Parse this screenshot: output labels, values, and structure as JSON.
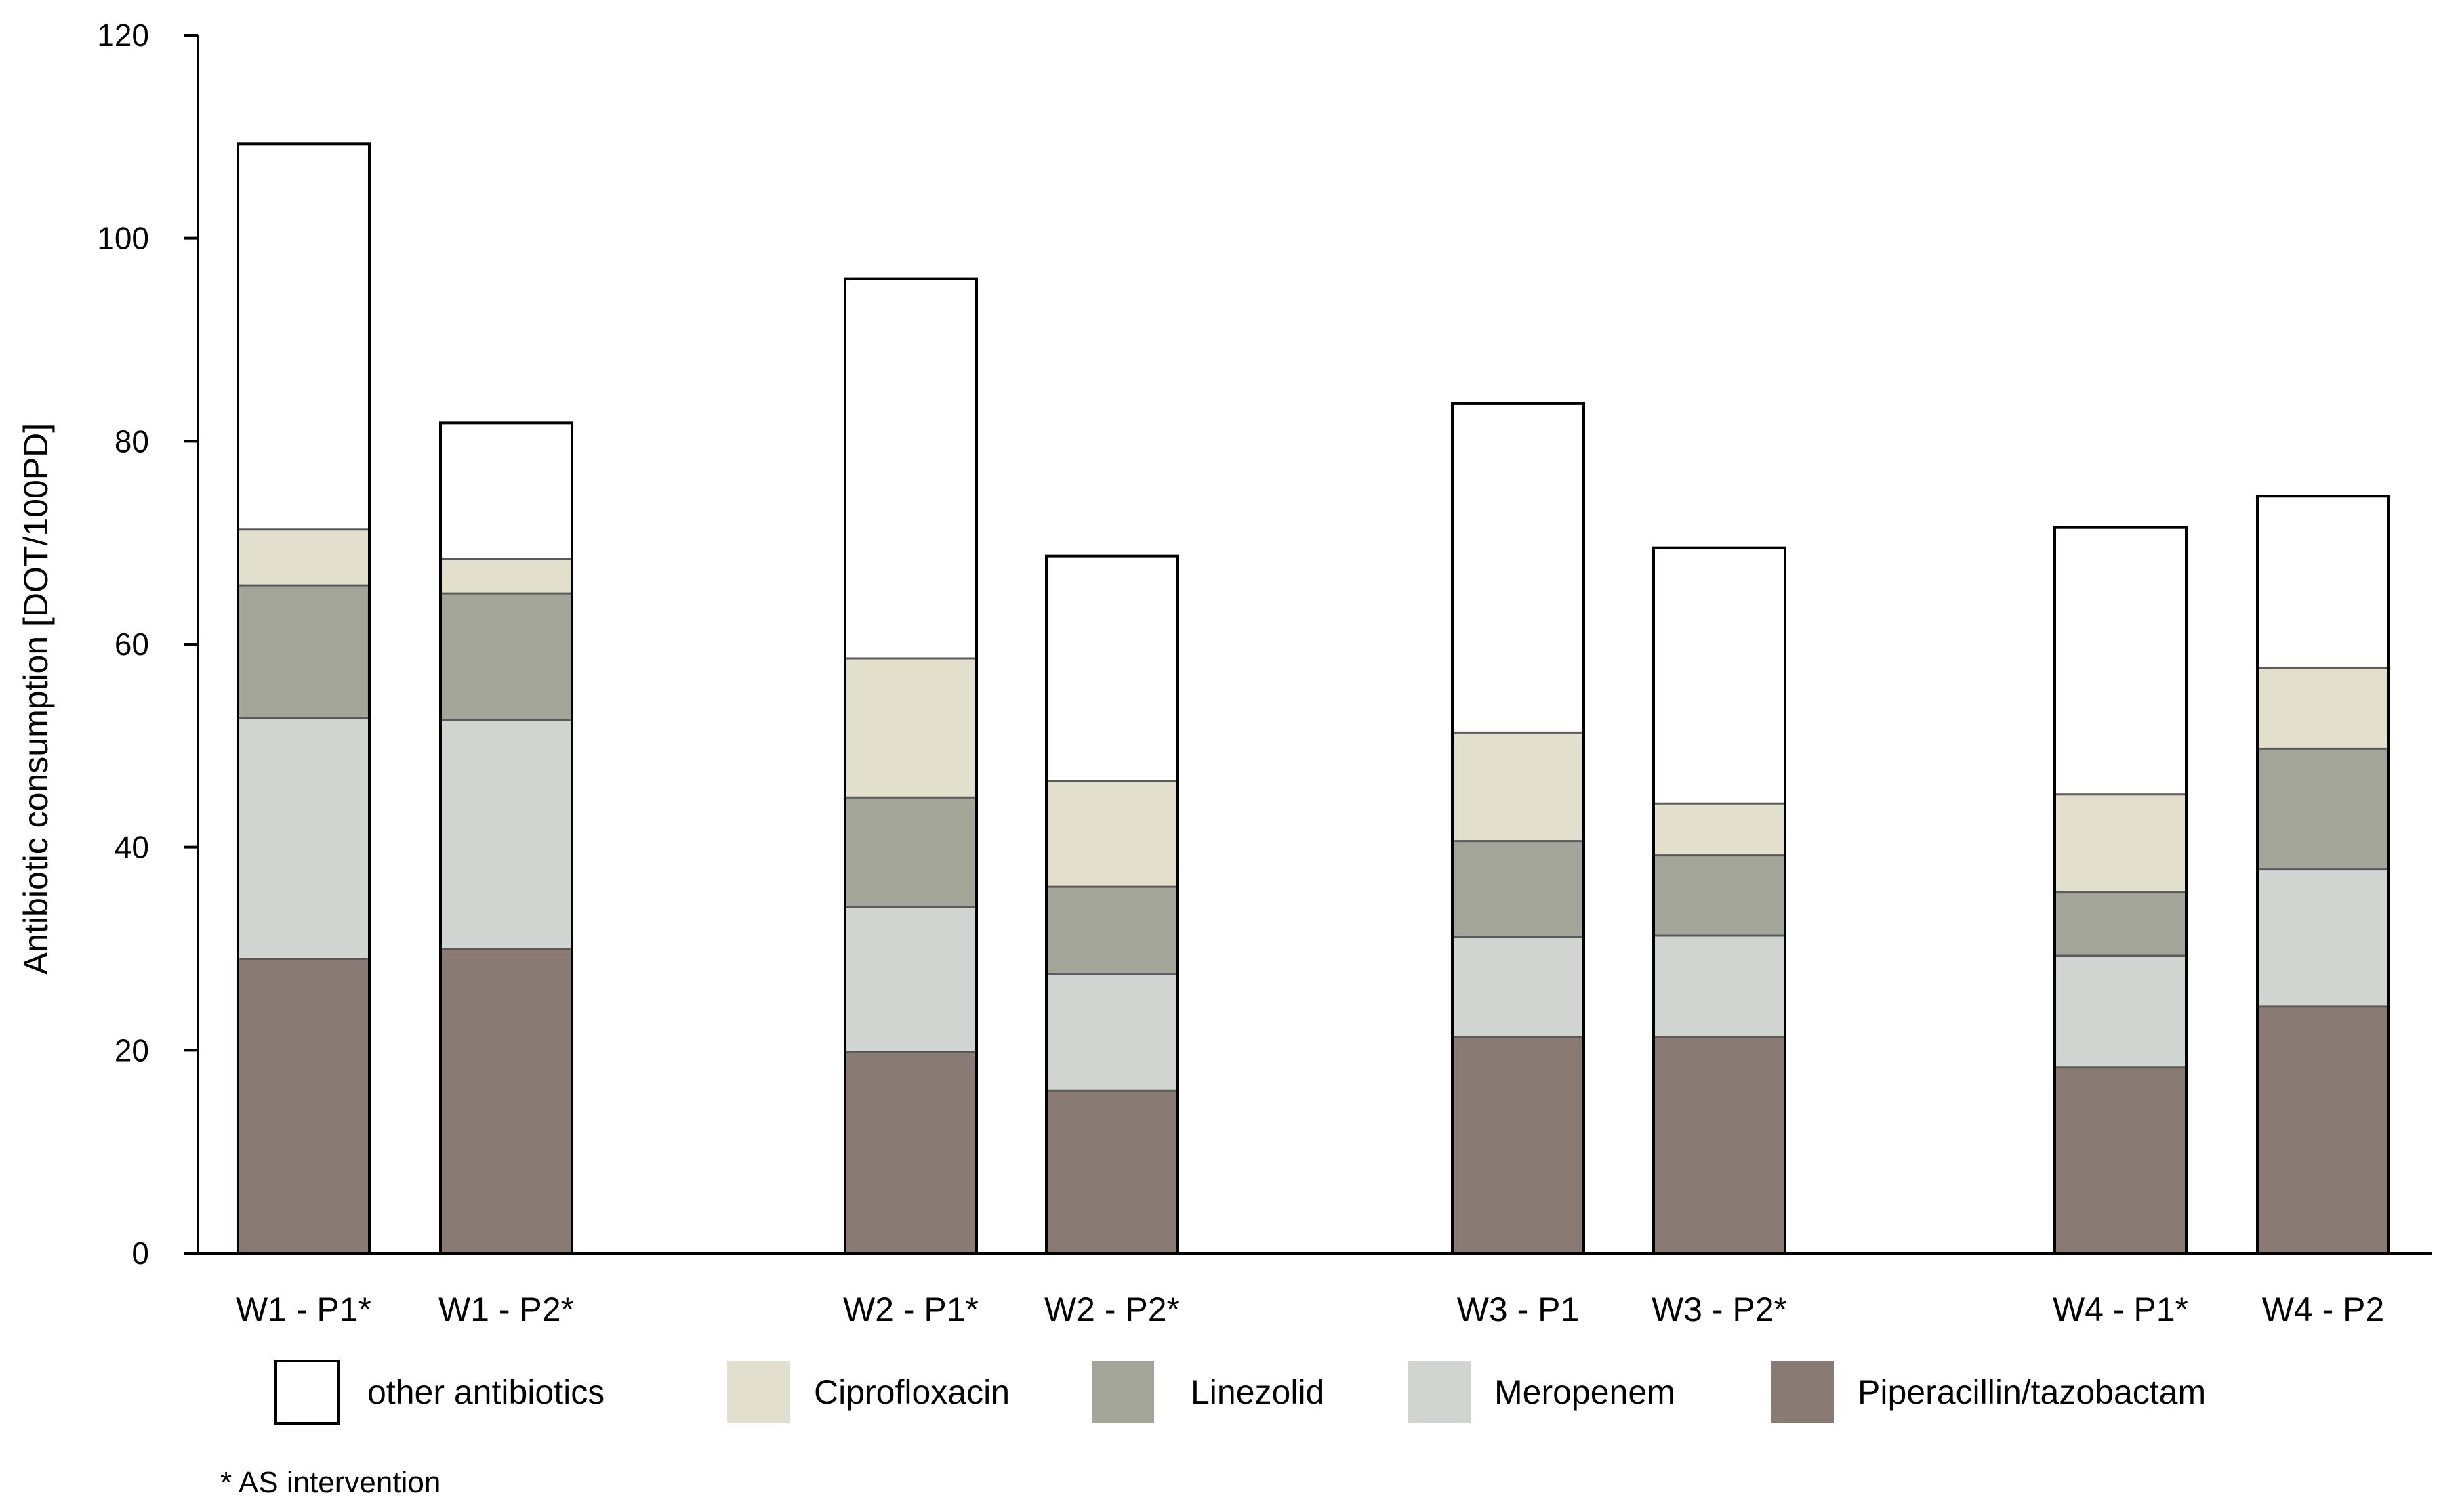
{
  "chart_data": {
    "type": "bar",
    "stacked": true,
    "title": "",
    "xlabel": "",
    "ylabel": "Antibiotic consumption [DOT/100PD]",
    "ylim": [
      0,
      120
    ],
    "yticks": [
      "0",
      "20",
      "40",
      "60",
      "80",
      "100",
      "120"
    ],
    "grid": false,
    "legend_position": "bottom",
    "categories": [
      "W1 - P1*",
      "W1 - P2*",
      "W2 - P1*",
      "W2 - P2*",
      "W3 - P1",
      "W3 - P2*",
      "W4 - P1*",
      "W4 - P2"
    ],
    "groups": [
      [
        "W1 - P1*",
        "W1 - P2*"
      ],
      [
        "W2 - P1*",
        "W2 - P2*"
      ],
      [
        "W3 - P1",
        "W3 - P2*"
      ],
      [
        "W4 - P1*",
        "W4 - P2"
      ]
    ],
    "series": [
      {
        "name": "Piperacillin/tazobactam",
        "color": "#8a7a74",
        "values": [
          29.0,
          30.0,
          19.8,
          16.0,
          21.3,
          21.3,
          18.3,
          24.3
        ]
      },
      {
        "name": "Meropenem",
        "color": "#d0d5d2",
        "values": [
          23.7,
          22.5,
          14.3,
          11.5,
          9.9,
          10.0,
          11.0,
          13.5
        ]
      },
      {
        "name": "Linezolid",
        "color": "#a3a598",
        "values": [
          13.1,
          12.5,
          10.8,
          8.6,
          9.4,
          7.9,
          6.3,
          11.9
        ]
      },
      {
        "name": "Ciprofloxacin",
        "color": "#e2dfcd",
        "values": [
          5.5,
          3.4,
          13.7,
          10.4,
          10.7,
          5.1,
          9.6,
          8.0
        ]
      },
      {
        "name": "other antibiotics",
        "color": "#ffffff",
        "values": [
          38.0,
          13.4,
          37.4,
          22.2,
          32.4,
          25.2,
          26.3,
          16.9
        ]
      }
    ],
    "legend_order": [
      "other antibiotics",
      "Ciprofloxacin",
      "Linezolid",
      "Meropenem",
      "Piperacillin/tazobactam"
    ],
    "footnote": "* AS intervention"
  }
}
